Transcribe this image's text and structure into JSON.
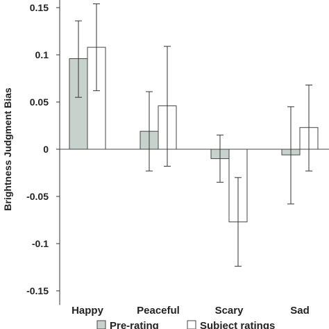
{
  "chart_data": {
    "type": "bar",
    "ylabel": "Brightness Judgment Bias",
    "ylim": [
      -0.165,
      0.165
    ],
    "yticks": [
      {
        "value": 0.15,
        "label": "0.15"
      },
      {
        "value": 0.1,
        "label": "0.1"
      },
      {
        "value": 0.05,
        "label": "0.05"
      },
      {
        "value": 0,
        "label": "0"
      },
      {
        "value": -0.05,
        "label": "-0.05"
      },
      {
        "value": -0.1,
        "label": "-0.1"
      },
      {
        "value": -0.15,
        "label": "-0.15"
      }
    ],
    "categories": [
      "Happy",
      "Peaceful",
      "Scary",
      "Sad"
    ],
    "series": [
      {
        "name": "Pre-rating",
        "values": [
          0.096,
          0.019,
          -0.01,
          -0.006
        ],
        "err_low": [
          0.055,
          -0.023,
          -0.035,
          -0.058
        ],
        "err_high": [
          0.136,
          0.061,
          0.015,
          0.045
        ],
        "color": "#c8d2cc"
      },
      {
        "name": "Subject ratings",
        "values": [
          0.108,
          0.046,
          -0.077,
          0.023
        ],
        "err_low": [
          0.062,
          -0.018,
          -0.124,
          -0.023
        ],
        "err_high": [
          0.154,
          0.109,
          -0.03,
          0.068
        ],
        "color": "#ffffff"
      }
    ],
    "legend_position": "bottom",
    "grid": false
  }
}
